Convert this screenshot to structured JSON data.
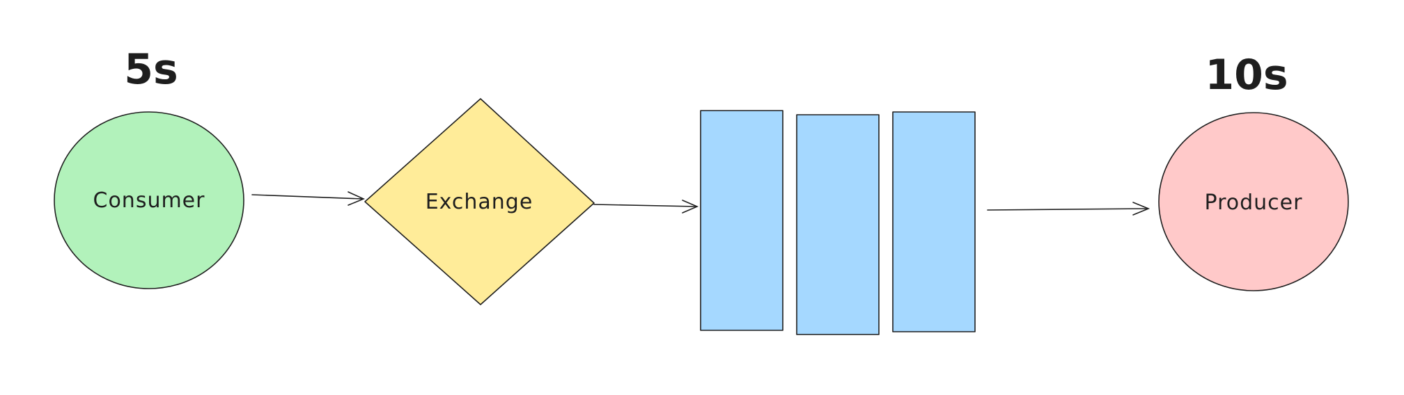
{
  "nodes": {
    "consumer": {
      "label": "Consumer",
      "timing": "5s",
      "shape": "circle",
      "fill": "#b2f2bb"
    },
    "exchange": {
      "label": "Exchange",
      "shape": "diamond",
      "fill": "#ffec99"
    },
    "queue": {
      "shape": "queue-bars",
      "bar_count": 3,
      "fill": "#a5d8ff"
    },
    "producer": {
      "label": "Producer",
      "timing": "10s",
      "shape": "circle",
      "fill": "#ffc9c9"
    }
  },
  "edges": [
    {
      "from": "consumer",
      "to": "exchange"
    },
    {
      "from": "exchange",
      "to": "queue"
    },
    {
      "from": "queue",
      "to": "producer"
    }
  ],
  "colors": {
    "stroke": "#1e1e1e",
    "background": "#ffffff"
  }
}
